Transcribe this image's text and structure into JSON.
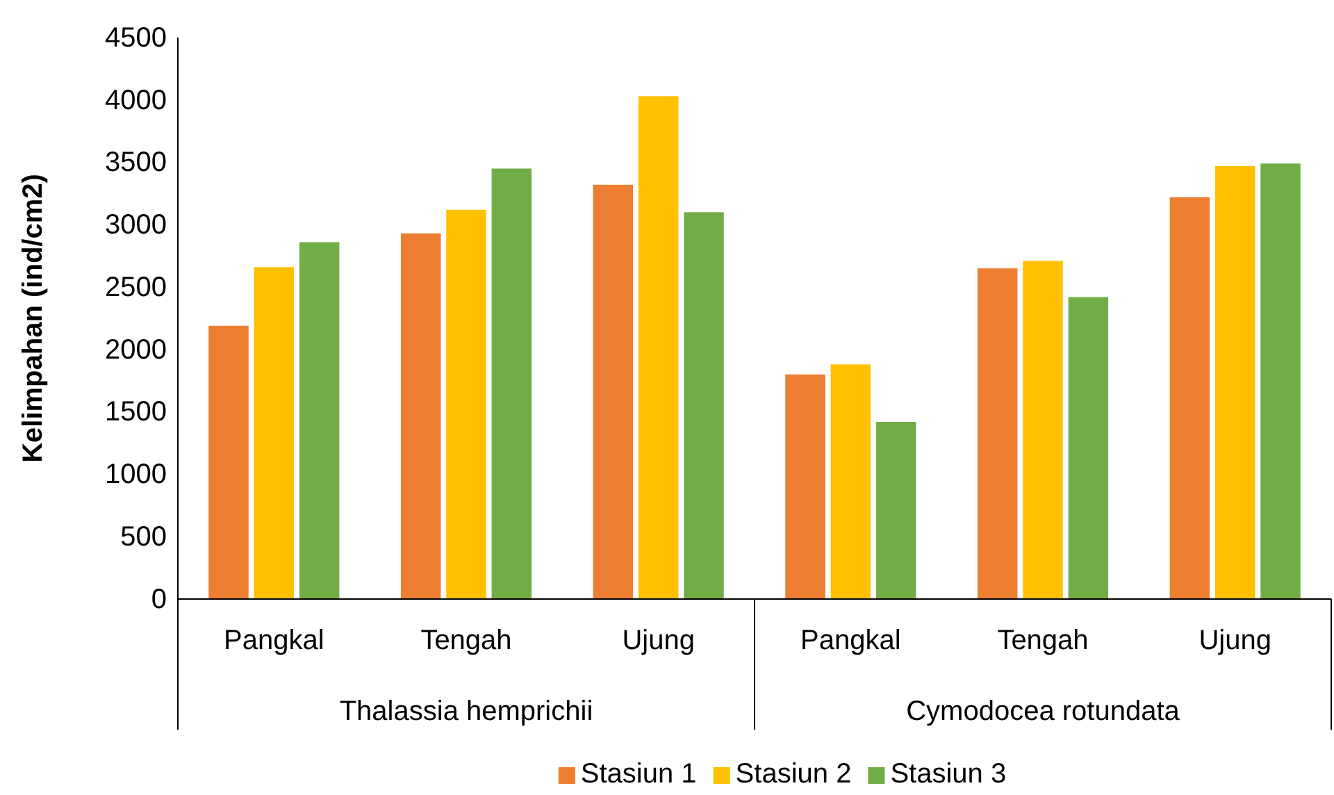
{
  "chart_data": {
    "type": "bar",
    "ylabel": "Kelimpahan (ind/cm2)",
    "categories": [
      "Pangkal",
      "Tengah",
      "Ujung",
      "Pangkal",
      "Tengah",
      "Ujung"
    ],
    "annotations": [
      "Thalassia hemprichii",
      "Cymodocea rotundata"
    ],
    "series": [
      {
        "name": "Stasiun 1",
        "color": "#ed7d31",
        "values": [
          2190,
          2930,
          3320,
          1800,
          2650,
          3220
        ]
      },
      {
        "name": "Stasiun 2",
        "color": "#ffc000",
        "values": [
          2660,
          3120,
          4030,
          1880,
          2710,
          3470
        ]
      },
      {
        "name": "Stasiun 3",
        "color": "#70ad47",
        "values": [
          2860,
          3450,
          3100,
          1420,
          2420,
          3490
        ]
      }
    ],
    "ylim": [
      0,
      4500
    ],
    "yticks": [
      0,
      500,
      1000,
      1500,
      2000,
      2500,
      3000,
      3500,
      4000,
      4500
    ],
    "grid": false,
    "legend": "bottom"
  }
}
